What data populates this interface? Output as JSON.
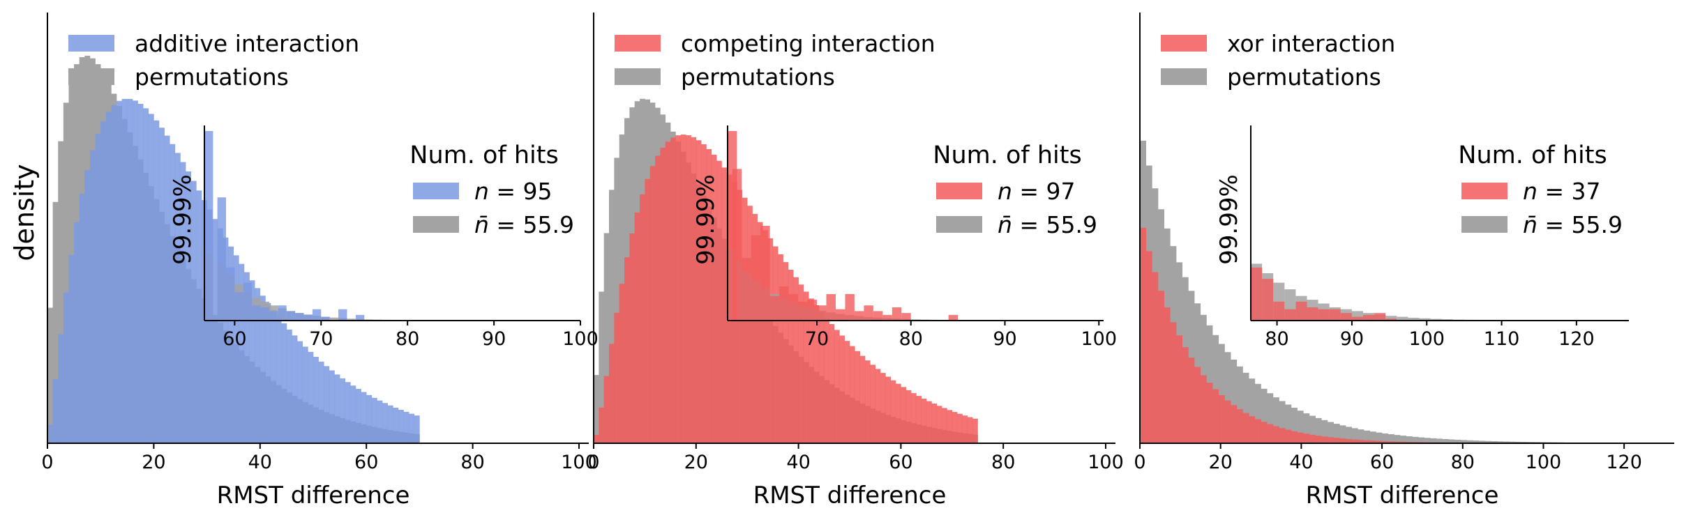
{
  "figure": {
    "ylabel": "density",
    "xlabel": "RMST difference",
    "inset_ylabel": "99.99%",
    "legend_title": "Num. of hits"
  },
  "colors": {
    "blue": "#7b99e2",
    "red": "#f35b5b",
    "gray": "#a3a3a3",
    "axis": "#000000"
  },
  "chart_data": [
    {
      "type": "histogram",
      "id": "additive",
      "ylabel": "density",
      "xlabel": "RMST difference",
      "xlim": [
        0,
        100
      ],
      "xticks": [
        0,
        20,
        40,
        60,
        80,
        100
      ],
      "ylim": [
        0,
        0.06
      ],
      "bin_width": 1,
      "series": [
        {
          "name": "additive interaction",
          "color": "blue",
          "decay": 12.5,
          "rise": 1.2,
          "peak": 0.048,
          "support": [
            0,
            70
          ]
        },
        {
          "name": "permutations",
          "color": "gray",
          "decay": 12.2,
          "rise": 0.6,
          "peak": 0.054,
          "support": [
            0,
            70
          ]
        }
      ],
      "legend": [
        "additive interaction",
        "permutations"
      ],
      "inset": {
        "xlim": [
          56.5,
          100
        ],
        "xticks": [
          60,
          70,
          80,
          90,
          100
        ],
        "ylabel": "99.99%",
        "legend_title": "Num. of hits",
        "bin_width": 1,
        "series": [
          {
            "name": "hits",
            "color": "blue",
            "values": [
              [
                56.5,
                1.0
              ],
              [
                58,
                0.65
              ],
              [
                59,
                0.28
              ],
              [
                60,
                0.15
              ],
              [
                61,
                0.2
              ],
              [
                62,
                0.08
              ],
              [
                63,
                0.07
              ],
              [
                64,
                0.05
              ],
              [
                65,
                0.08
              ],
              [
                66,
                0.05
              ],
              [
                67,
                0.04
              ],
              [
                68,
                0.03
              ],
              [
                69,
                0.06
              ],
              [
                70,
                0.02
              ],
              [
                72,
                0.06
              ],
              [
                74,
                0.03
              ]
            ]
          },
          {
            "name": "perm",
            "color": "gray",
            "values": [
              [
                56.5,
                0.35
              ],
              [
                58,
                0.3
              ],
              [
                59,
                0.24
              ],
              [
                60,
                0.19
              ],
              [
                61,
                0.15
              ],
              [
                62,
                0.12
              ],
              [
                63,
                0.1
              ],
              [
                64,
                0.08
              ],
              [
                65,
                0.065
              ],
              [
                66,
                0.05
              ],
              [
                67,
                0.04
              ],
              [
                68,
                0.032
              ],
              [
                69,
                0.025
              ],
              [
                70,
                0.02
              ],
              [
                71,
                0.016
              ],
              [
                72,
                0.013
              ],
              [
                73,
                0.01
              ],
              [
                74,
                0.008
              ],
              [
                75,
                0.006
              ],
              [
                76,
                0.005
              ],
              [
                77,
                0.004
              ],
              [
                78,
                0.003
              ],
              [
                80,
                0.002
              ],
              [
                82,
                0.0015
              ]
            ]
          }
        ],
        "legend": [
          {
            "label": "n = 95",
            "italic": "n",
            "color": "blue"
          },
          {
            "label": "n̄ = 55.9",
            "italic": "n̄",
            "color": "gray"
          }
        ]
      }
    },
    {
      "type": "histogram",
      "id": "competing",
      "ylabel": "",
      "xlabel": "RMST difference",
      "xlim": [
        0,
        100
      ],
      "xticks": [
        0,
        20,
        40,
        60,
        80,
        100
      ],
      "ylim": [
        0,
        0.06
      ],
      "bin_width": 1,
      "series": [
        {
          "name": "competing interaction",
          "color": "red",
          "decay": 12.5,
          "rise": 1.4,
          "peak": 0.043,
          "support": [
            0,
            75
          ]
        },
        {
          "name": "permutations",
          "color": "gray",
          "decay": 12.2,
          "rise": 0.8,
          "peak": 0.048,
          "support": [
            0,
            75
          ]
        }
      ],
      "legend": [
        "competing interaction",
        "permutations"
      ],
      "inset": {
        "xlim": [
          60.5,
          100.5
        ],
        "xticks": [
          70,
          80,
          90,
          100
        ],
        "ylabel": "99.99%",
        "legend_title": "Num. of hits",
        "bin_width": 1,
        "series": [
          {
            "name": "hits",
            "color": "red",
            "values": [
              [
                60.5,
                1.0
              ],
              [
                61,
                0.8
              ],
              [
                62,
                0.33
              ],
              [
                63,
                0.45
              ],
              [
                64,
                0.5
              ],
              [
                65,
                0.13
              ],
              [
                66,
                0.18
              ],
              [
                67,
                0.14
              ],
              [
                68,
                0.1
              ],
              [
                69,
                0.11
              ],
              [
                70,
                0.08
              ],
              [
                71,
                0.14
              ],
              [
                72,
                0.06
              ],
              [
                73,
                0.14
              ],
              [
                74,
                0.05
              ],
              [
                75,
                0.08
              ],
              [
                76,
                0.05
              ],
              [
                77,
                0.03
              ],
              [
                78,
                0.07
              ],
              [
                79,
                0.04
              ],
              [
                84,
                0.03
              ]
            ]
          },
          {
            "name": "perm",
            "color": "gray",
            "values": [
              [
                60.5,
                0.38
              ],
              [
                61,
                0.32
              ],
              [
                62,
                0.26
              ],
              [
                63,
                0.21
              ],
              [
                64,
                0.17
              ],
              [
                65,
                0.14
              ],
              [
                66,
                0.115
              ],
              [
                67,
                0.095
              ],
              [
                68,
                0.078
              ],
              [
                69,
                0.064
              ],
              [
                70,
                0.052
              ],
              [
                71,
                0.043
              ],
              [
                72,
                0.035
              ],
              [
                73,
                0.029
              ],
              [
                74,
                0.024
              ],
              [
                75,
                0.019
              ],
              [
                76,
                0.016
              ],
              [
                77,
                0.013
              ],
              [
                78,
                0.01
              ],
              [
                79,
                0.008
              ],
              [
                80,
                0.006
              ],
              [
                81,
                0.005
              ],
              [
                82,
                0.004
              ],
              [
                84,
                0.003
              ],
              [
                86,
                0.002
              ],
              [
                88,
                0.0015
              ]
            ]
          }
        ],
        "legend": [
          {
            "label": "n = 97",
            "italic": "n",
            "color": "red"
          },
          {
            "label": "n̄ = 55.9",
            "italic": "n̄",
            "color": "gray"
          }
        ]
      }
    },
    {
      "type": "histogram",
      "id": "xor",
      "ylabel": "",
      "xlabel": "RMST difference",
      "xlim": [
        0,
        130
      ],
      "xticks": [
        0,
        20,
        40,
        60,
        80,
        100,
        120
      ],
      "ylim": [
        0,
        0.06
      ],
      "bin_width": 1.5,
      "series": [
        {
          "name": "xor interaction",
          "color": "red",
          "decay": 13,
          "rise": 0.01,
          "peak": 0.0318,
          "support": [
            0,
            100
          ]
        },
        {
          "name": "permutations",
          "color": "gray",
          "decay": 17.5,
          "rise": 0.01,
          "peak": 0.044,
          "support": [
            0,
            105
          ]
        }
      ],
      "legend": [
        "xor interaction",
        "permutations"
      ],
      "inset": {
        "xlim": [
          76.5,
          127
        ],
        "xticks": [
          80,
          90,
          100,
          110,
          120
        ],
        "ylabel": "99.99%",
        "legend_title": "Num. of hits",
        "bin_width": 1.5,
        "series": [
          {
            "name": "hits",
            "color": "red",
            "values": [
              [
                76.5,
                0.28
              ],
              [
                78,
                0.22
              ],
              [
                79.5,
                0.1
              ],
              [
                81,
                0.06
              ],
              [
                82.5,
                0.1
              ],
              [
                84,
                0.07
              ],
              [
                85.5,
                0.06
              ],
              [
                87,
                0.06
              ],
              [
                88.5,
                0.04
              ],
              [
                90,
                0.02
              ],
              [
                91.5,
                0.03
              ],
              [
                93,
                0.04
              ],
              [
                94.5,
                0.01
              ]
            ]
          },
          {
            "name": "perm",
            "color": "gray",
            "values": [
              [
                76.5,
                0.3
              ],
              [
                78,
                0.25
              ],
              [
                79.5,
                0.2
              ],
              [
                81,
                0.165
              ],
              [
                82.5,
                0.13
              ],
              [
                84,
                0.11
              ],
              [
                85.5,
                0.09
              ],
              [
                87,
                0.07
              ],
              [
                88.5,
                0.06
              ],
              [
                90,
                0.05
              ],
              [
                91.5,
                0.04
              ],
              [
                93,
                0.032
              ],
              [
                94.5,
                0.025
              ],
              [
                96,
                0.02
              ],
              [
                97.5,
                0.015
              ],
              [
                99,
                0.012
              ],
              [
                100.5,
                0.009
              ],
              [
                102,
                0.007
              ],
              [
                103.5,
                0.005
              ],
              [
                105,
                0.004
              ],
              [
                108,
                0.003
              ],
              [
                111,
                0.002
              ]
            ]
          }
        ],
        "legend": [
          {
            "label": "n = 37",
            "italic": "n",
            "color": "red"
          },
          {
            "label": "n̄ = 55.9",
            "italic": "n̄",
            "color": "gray"
          }
        ]
      }
    }
  ]
}
